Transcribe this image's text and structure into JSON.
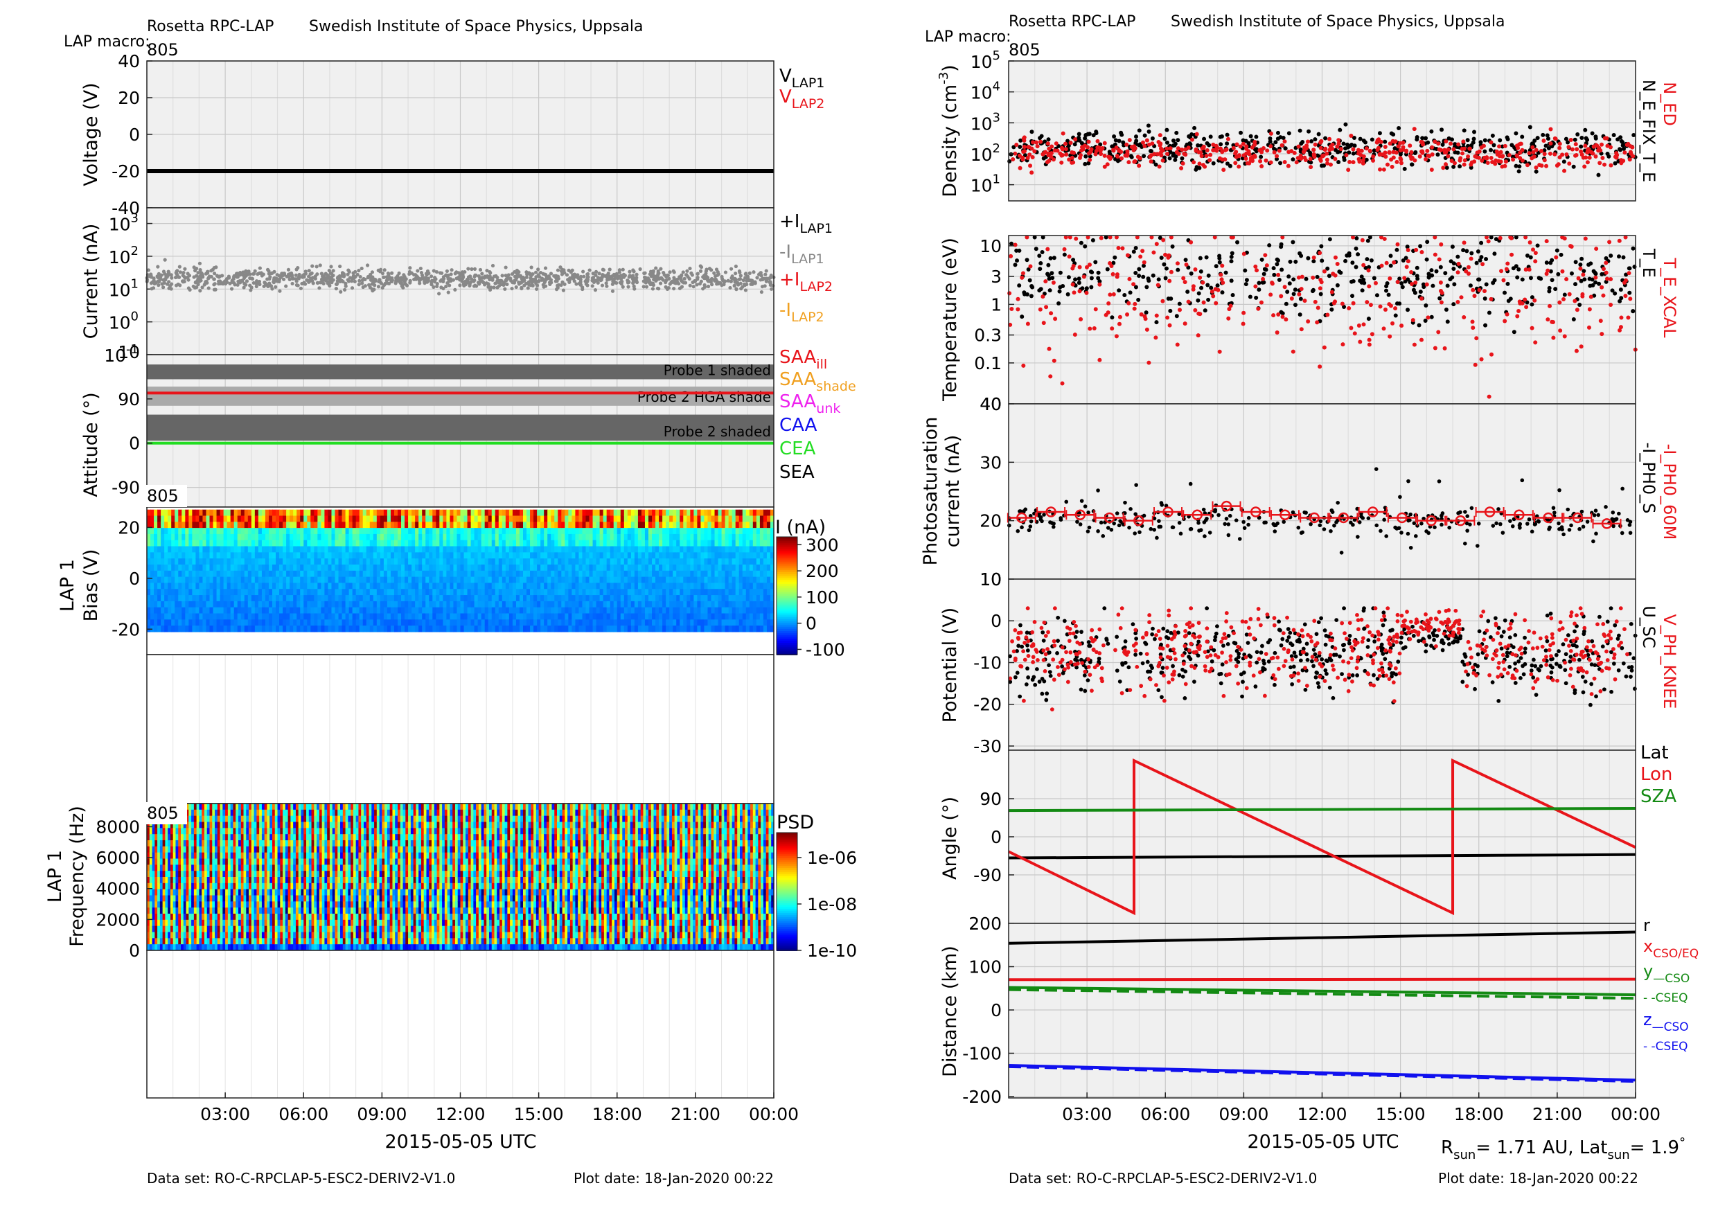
{
  "left": {
    "header_title": "Rosetta RPC-LAP",
    "header_institute": "Swedish Institute of Space Physics, Uppsala",
    "macro_label": "LAP macro:",
    "macro_value": "805",
    "footer_dataset": "Data set: RO-C-RPCLAP-5-ESC2-DERIV2-V1.0",
    "footer_plotdate": "Plot date: 18-Jan-2020 00:22",
    "xlabel": "2015-05-05 UTC"
  },
  "right": {
    "header_title": "Rosetta RPC-LAP",
    "header_institute": "Swedish Institute of Space Physics, Uppsala",
    "macro_label": "LAP macro:",
    "macro_value": "805",
    "footer_dataset": "Data set: RO-C-RPCLAP-5-ESC2-DERIV2-V1.0",
    "footer_plotdate": "Plot date: 18-Jan-2020 00:22",
    "xlabel": "2015-05-05 UTC",
    "rsun_text": "= 1.71 AU, Lat",
    "rsun_tail": "= 1.9",
    "rsun_sub": "sun",
    "deg": "°"
  },
  "x_ticks": [
    "03:00",
    "06:00",
    "09:00",
    "12:00",
    "15:00",
    "18:00",
    "21:00",
    "00:00"
  ],
  "spec_macro_1": "805",
  "spec_macro_2": "805",
  "colors": {
    "red": "#e8141a",
    "green": "#138a13",
    "bright_green": "#22dd22",
    "blue": "#1010ee",
    "gray": "#888888",
    "orange": "#f0a020",
    "magenta": "#ee22ee",
    "panel_bg": "#f0f0f0",
    "shade_dark": "#666666",
    "shade_light": "#aaaaaa"
  },
  "chart_data": [
    {
      "type": "line",
      "id": "voltage",
      "ylabel": "Voltage (V)",
      "ylim": [
        -40,
        40
      ],
      "yticks": [
        "40",
        "20",
        "0",
        "-20",
        "-40"
      ],
      "series": [
        {
          "name": "V_LAP1",
          "values": [
            -20,
            -20
          ]
        }
      ],
      "legend": [
        {
          "main": "V",
          "sub": "LAP1",
          "color": "#000000"
        },
        {
          "main": "V",
          "sub": "LAP2",
          "color": "#e8141a"
        }
      ]
    },
    {
      "type": "scatter",
      "id": "current",
      "ylabel": "Current (nA)",
      "scale": "log",
      "ylim": [
        0.1,
        3000
      ],
      "yticks": [
        {
          "b": "10",
          "e": "3"
        },
        {
          "b": "10",
          "e": "2"
        },
        {
          "b": "10",
          "e": "1"
        },
        {
          "b": "10",
          "e": "0"
        },
        {
          "b": "10",
          "e": "-1"
        }
      ],
      "series": [
        {
          "name": "-I_LAP1",
          "typical": 20
        }
      ],
      "legend": [
        {
          "main": "+I",
          "sub": "LAP1",
          "color": "#000000"
        },
        {
          "main": "-I",
          "sub": "LAP1",
          "color": "#888888"
        },
        {
          "main": "+I",
          "sub": "LAP2",
          "color": "#e8141a"
        },
        {
          "main": "-I",
          "sub": "LAP2",
          "color": "#f0a020"
        }
      ]
    },
    {
      "type": "area",
      "id": "attitude",
      "ylabel": "Attitude (°)",
      "ylim": [
        -130,
        180
      ],
      "yticks": [
        "90",
        "0",
        "-90"
      ],
      "bands": [
        {
          "label": "Probe 1 shaded",
          "from": 130,
          "to": 160
        },
        {
          "label": "Probe 2 HGA shade",
          "from": 76,
          "to": 115
        },
        {
          "label": "Probe 2 shaded",
          "from": 5,
          "to": 58
        }
      ],
      "series": [
        {
          "name": "SAA_ill",
          "values": [
            102,
            102
          ]
        },
        {
          "name": "CEA",
          "values": [
            0,
            0
          ]
        }
      ],
      "legend": [
        {
          "main": "SAA",
          "sub": "ill",
          "color": "#e8141a"
        },
        {
          "main": "SAA",
          "sub": "shade",
          "color": "#f0a020"
        },
        {
          "main": "SAA",
          "sub": "unk",
          "color": "#ee22ee"
        },
        {
          "main": "CAA",
          "sub": "",
          "color": "#1010ee"
        },
        {
          "main": "CEA",
          "sub": "",
          "color": "#22dd22"
        },
        {
          "main": "SEA",
          "sub": "",
          "color": "#000000"
        }
      ]
    },
    {
      "type": "heatmap",
      "id": "bias_spec",
      "ylabel": "LAP 1",
      "ylabel2": "Bias (V)",
      "ylim": [
        -30,
        28
      ],
      "yticks": [
        "20",
        "0",
        "-20"
      ],
      "colorbar_label": "I (nA)",
      "colorbar_ticks": [
        "300",
        "200",
        "100",
        "0",
        "-100"
      ],
      "colorbar_range": [
        -120,
        330
      ]
    },
    {
      "type": "heatmap",
      "id": "psd_spec",
      "ylabel": "LAP 1",
      "ylabel2": "Frequency (Hz)",
      "ylim": [
        0,
        9500
      ],
      "yticks": [
        "8000",
        "6000",
        "4000",
        "2000",
        "0"
      ],
      "colorbar_label": "PSD",
      "colorbar_ticks": [
        "1e-06",
        "1e-08",
        "1e-10"
      ]
    },
    {
      "type": "scatter",
      "id": "density",
      "ylabel": "Density (cm",
      "ylabel_sup": "-3",
      "ylabel_tail": ")",
      "scale": "log",
      "ylim": [
        3,
        100000
      ],
      "yticks": [
        {
          "b": "10",
          "e": "5"
        },
        {
          "b": "10",
          "e": "4"
        },
        {
          "b": "10",
          "e": "3"
        },
        {
          "b": "10",
          "e": "2"
        },
        {
          "b": "10",
          "e": "1"
        }
      ],
      "series": [
        {
          "name": "N_E_FIX_T_E",
          "typical": 150
        },
        {
          "name": "N_ED",
          "typical": 110
        }
      ],
      "legend": [
        {
          "text": "N_ED",
          "color": "#e8141a"
        },
        {
          "text": "N_E_FIX_T_E",
          "color": "#000000"
        }
      ]
    },
    {
      "type": "scatter",
      "id": "temperature",
      "ylabel": "Temperature (eV)",
      "scale": "log",
      "ylim": [
        0.02,
        15
      ],
      "yticks": [
        "10",
        "3",
        "1",
        "0.3",
        "0.1"
      ],
      "series": [
        {
          "name": "T_E",
          "typical": 3
        },
        {
          "name": "T_E_XCAL",
          "typical": 2
        }
      ],
      "legend": [
        {
          "text": "T_E_XCAL",
          "color": "#e8141a"
        },
        {
          "text": "T_E",
          "color": "#000000"
        }
      ]
    },
    {
      "type": "scatter",
      "id": "photosat",
      "ylabel": "Photosaturation",
      "ylabel2": "current (nA)",
      "ylim": [
        10,
        40
      ],
      "yticks": [
        "40",
        "30",
        "20",
        "10"
      ],
      "series": [
        {
          "name": "-I_PH0_S",
          "typical": 20
        },
        {
          "name": "-I_PH0_60M",
          "values": [
            20.5,
            21.5,
            21,
            20.5,
            20,
            21.5,
            21,
            22.5,
            21.5,
            21,
            20.5,
            20.5,
            21.5,
            20.5,
            20,
            20,
            21.5,
            21,
            20.5,
            20.5,
            19.5
          ]
        }
      ],
      "legend": [
        {
          "text": "-I_PH0_60M",
          "color": "#e8141a"
        },
        {
          "text": "-I_PH0_S",
          "color": "#000000"
        }
      ]
    },
    {
      "type": "scatter",
      "id": "potential",
      "ylabel": "Potential (V)",
      "ylim": [
        -31,
        10
      ],
      "yticks": [
        "10",
        "0",
        "-10",
        "-20",
        "-30"
      ],
      "series": [
        {
          "name": "U_SC",
          "typical": -8
        },
        {
          "name": "V_PH_KNEE",
          "typical": -7
        }
      ],
      "legend": [
        {
          "text": "V_PH_KNEE",
          "color": "#e8141a"
        },
        {
          "text": "U_SC",
          "color": "#000000"
        }
      ]
    },
    {
      "type": "line",
      "id": "angle",
      "ylabel": "Angle (°)",
      "ylim": [
        -200,
        200
      ],
      "yticks": [
        "90",
        "0",
        "-90",
        "200"
      ],
      "series": [
        {
          "name": "Lat",
          "x": [
            0,
            24
          ],
          "values": [
            -50,
            -42
          ]
        },
        {
          "name": "Lon",
          "x": [
            0,
            4.8,
            4.8,
            17.0,
            17.0,
            24
          ],
          "values": [
            -35,
            -180,
            180,
            -180,
            180,
            -25
          ]
        },
        {
          "name": "SZA",
          "x": [
            0,
            24
          ],
          "values": [
            62,
            67
          ]
        }
      ],
      "legend": [
        {
          "text": "Lat",
          "color": "#000000"
        },
        {
          "text": "Lon",
          "color": "#e8141a"
        },
        {
          "text": "SZA",
          "color": "#138a13"
        }
      ]
    },
    {
      "type": "line",
      "id": "distance",
      "ylabel": "Distance (km)",
      "ylim": [
        -200,
        200
      ],
      "yticks": [
        "100",
        "0",
        "-100",
        "-200"
      ],
      "series": [
        {
          "name": "r",
          "values": [
            154,
            180
          ]
        },
        {
          "name": "x_CSO/EQ",
          "values": [
            70,
            71
          ]
        },
        {
          "name": "y_CSO",
          "values": [
            52,
            35
          ]
        },
        {
          "name": "y_CSEQ",
          "values": [
            47,
            27
          ]
        },
        {
          "name": "z_CSO",
          "values": [
            -128,
            -162
          ]
        },
        {
          "name": "z_CSEQ",
          "values": [
            -131,
            -165
          ]
        }
      ],
      "legend": [
        {
          "main": "r",
          "sub": "",
          "color": "#000000"
        },
        {
          "main": "x",
          "sub": "CSO/EQ",
          "color": "#e8141a"
        },
        {
          "main": "y",
          "sub": "—CSO",
          "color": "#138a13"
        },
        {
          "main": "",
          "sub": "- -CSEQ",
          "color": "#138a13"
        },
        {
          "main": "z",
          "sub": "—CSO",
          "color": "#1010ee"
        },
        {
          "main": "",
          "sub": "- -CSEQ",
          "color": "#1010ee"
        }
      ]
    }
  ]
}
